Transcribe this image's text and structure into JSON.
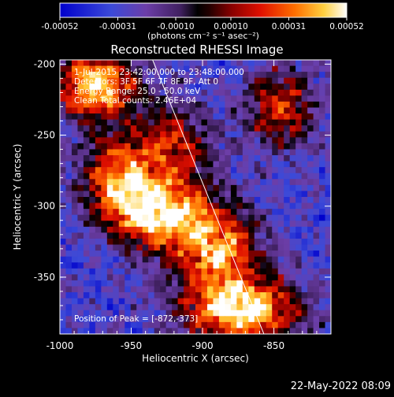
{
  "chart_data": {
    "type": "heatmap",
    "title": "Reconstructed RHESSI Image",
    "xlabel": "Heliocentric X (arcsec)",
    "ylabel": "Heliocentric Y (arcsec)",
    "xlim": [
      -1000,
      -810
    ],
    "ylim": [
      -390,
      -197
    ],
    "x_ticks": [
      "-1000",
      "-950",
      "-900",
      "-850"
    ],
    "x_tick_values": [
      -1000,
      -950,
      -900,
      -850
    ],
    "y_ticks": [
      "-200",
      "-250",
      "-300",
      "-350"
    ],
    "y_tick_values": [
      -200,
      -250,
      -300,
      -350
    ],
    "colorbar": {
      "ticks": [
        "-0.00052",
        "-0.00031",
        "-0.00010",
        "0.00010",
        "0.00031",
        "0.00052"
      ],
      "tick_values": [
        -0.00052,
        -0.00031,
        -0.0001,
        0.0001,
        0.00031,
        0.00052
      ],
      "range": [
        -0.00052,
        0.00052
      ],
      "unit_label": "(photons cm⁻² s⁻¹ asec⁻²)"
    },
    "annotations": [
      "1-Jul-2015 23:42:00.000 to 23:48:00.000",
      "Detectors: 3F 5F 6F 7F 8F 9F, Att 0",
      "Energy Range: 25.0 - 50.0 keV",
      "Clean    Total counts: 2.46E+04"
    ],
    "peak_label": "Position of Peak = [-872,-373]",
    "peak": [
      -872,
      -373
    ],
    "limb_line": [
      [
        -935,
        -197
      ],
      [
        -857,
        -390
      ]
    ],
    "grid": false,
    "legend": "none",
    "sources": [
      {
        "x": -975,
        "y": -215,
        "amp": 0.0005,
        "sx": 20,
        "sy": 16
      },
      {
        "x": -960,
        "y": -280,
        "amp": 0.0003,
        "sx": 18,
        "sy": 22
      },
      {
        "x": -930,
        "y": -305,
        "amp": 0.00045,
        "sx": 22,
        "sy": 18
      },
      {
        "x": -890,
        "y": -330,
        "amp": 0.00036,
        "sx": 22,
        "sy": 22
      },
      {
        "x": -872,
        "y": -373,
        "amp": 0.00052,
        "sx": 28,
        "sy": 16
      },
      {
        "x": -845,
        "y": -230,
        "amp": 0.00022,
        "sx": 16,
        "sy": 20
      },
      {
        "x": -920,
        "y": -255,
        "amp": 0.00015,
        "sx": 20,
        "sy": 20
      }
    ]
  },
  "footer": {
    "timestamp": "22-May-2022 08:09"
  }
}
